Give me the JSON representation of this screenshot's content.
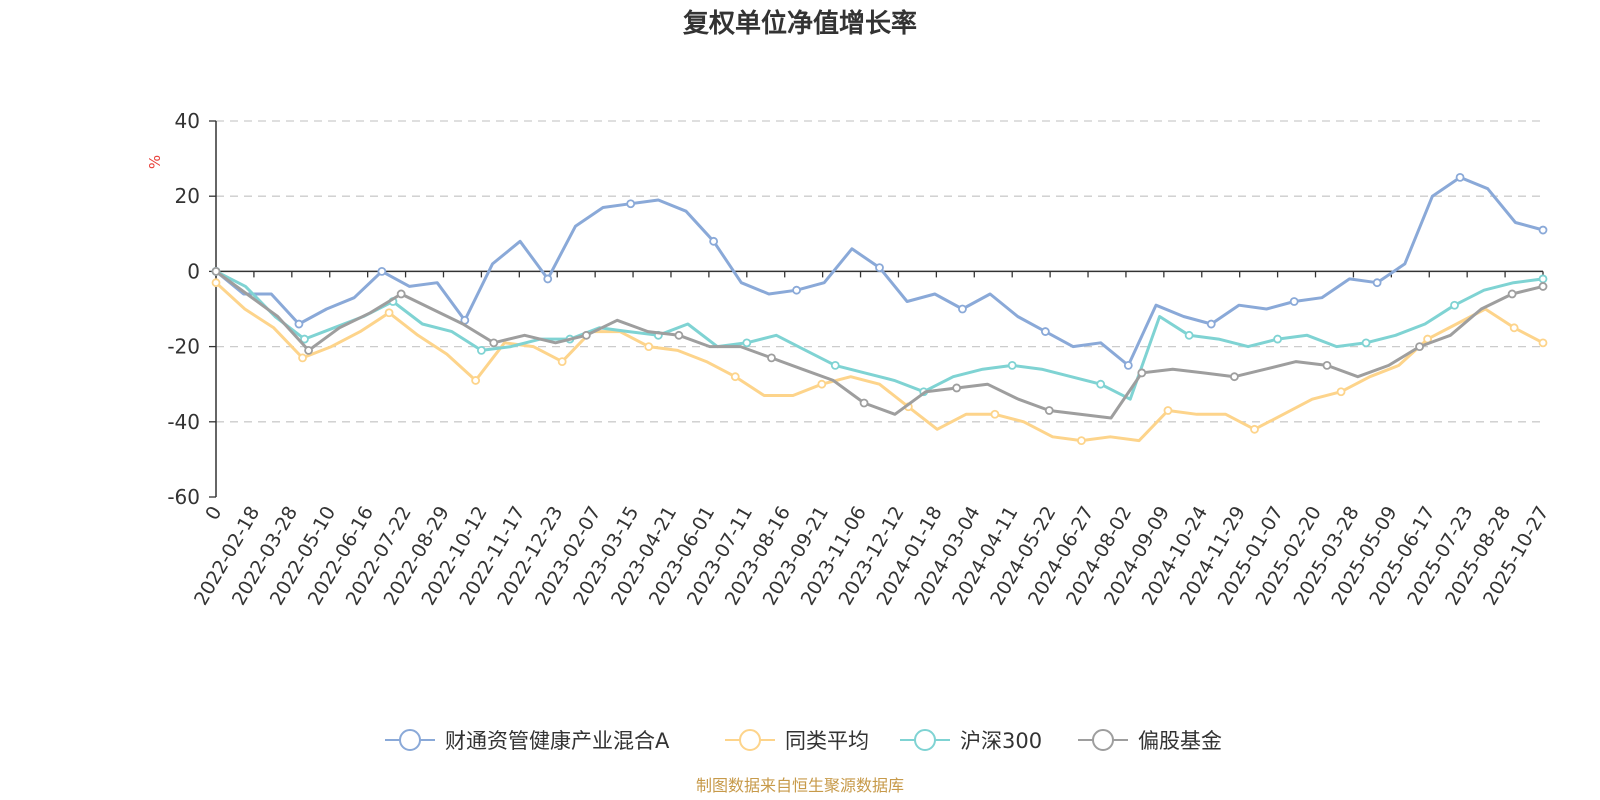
{
  "chart_data": {
    "type": "line",
    "title": "复权单位净值增长率",
    "ylabel": "%",
    "ylim": [
      -60,
      40
    ],
    "yticks": [
      40,
      20,
      0,
      -20,
      -40,
      -60
    ],
    "grid": true,
    "legend_position": "bottom",
    "source": "制图数据来自恒生聚源数据库",
    "x_labels": [
      "0",
      "2022-02-18",
      "2022-03-28",
      "2022-05-10",
      "2022-06-16",
      "2022-07-22",
      "2022-08-29",
      "2022-10-12",
      "2022-11-17",
      "2022-12-23",
      "2023-02-07",
      "2023-03-15",
      "2023-04-21",
      "2023-06-01",
      "2023-07-11",
      "2023-08-16",
      "2023-09-21",
      "2023-11-06",
      "2023-12-12",
      "2024-01-18",
      "2024-03-04",
      "2024-04-11",
      "2024-05-22",
      "2024-06-27",
      "2024-08-02",
      "2024-09-09",
      "2024-10-24",
      "2024-11-29",
      "2025-01-07",
      "2025-02-20",
      "2025-03-28",
      "2025-05-09",
      "2025-06-17",
      "2025-07-23",
      "2025-08-28",
      "2025-10-27"
    ],
    "series": [
      {
        "name": "财通资管健康产业混合A",
        "color": "#8aa9d8",
        "values": [
          0,
          -6,
          -6,
          -14,
          -10,
          -7,
          0,
          -4,
          -3,
          -13,
          2,
          8,
          -2,
          12,
          17,
          18,
          19,
          16,
          8,
          -3,
          -6,
          -5,
          -3,
          6,
          1,
          -8,
          -6,
          -10,
          -6,
          -12,
          -16,
          -20,
          -19,
          -25,
          -9,
          -12,
          -14,
          -9,
          -10,
          -8,
          -7,
          -2,
          -3,
          2,
          20,
          25,
          22,
          13,
          11
        ]
      },
      {
        "name": "同类平均",
        "color": "#fdd48b",
        "values": [
          -3,
          -10,
          -15,
          -23,
          -20,
          -16,
          -11,
          -17,
          -22,
          -29,
          -19,
          -20,
          -24,
          -16,
          -16,
          -20,
          -21,
          -24,
          -28,
          -33,
          -33,
          -30,
          -28,
          -30,
          -36,
          -42,
          -38,
          -38,
          -40,
          -44,
          -45,
          -44,
          -45,
          -37,
          -38,
          -38,
          -42,
          -38,
          -34,
          -32,
          -28,
          -25,
          -18,
          -14,
          -10,
          -15,
          -19
        ]
      },
      {
        "name": "沪深300",
        "color": "#7fd3d3",
        "values": [
          0,
          -4,
          -12,
          -18,
          -15,
          -12,
          -8,
          -14,
          -16,
          -21,
          -20,
          -18,
          -18,
          -15,
          -16,
          -17,
          -14,
          -20,
          -19,
          -17,
          -21,
          -25,
          -27,
          -29,
          -32,
          -28,
          -26,
          -25,
          -26,
          -28,
          -30,
          -34,
          -12,
          -17,
          -18,
          -20,
          -18,
          -17,
          -20,
          -19,
          -17,
          -14,
          -9,
          -5,
          -3,
          -2
        ]
      },
      {
        "name": "偏股基金",
        "color": "#9e9e9e",
        "values": [
          0,
          -6,
          -12,
          -21,
          -15,
          -11,
          -6,
          -10,
          -14,
          -19,
          -17,
          -19,
          -17,
          -13,
          -16,
          -17,
          -20,
          -20,
          -23,
          -26,
          -29,
          -35,
          -38,
          -32,
          -31,
          -30,
          -34,
          -37,
          -38,
          -39,
          -27,
          -26,
          -27,
          -28,
          -26,
          -24,
          -25,
          -28,
          -25,
          -20,
          -17,
          -10,
          -6,
          -4
        ]
      }
    ]
  }
}
